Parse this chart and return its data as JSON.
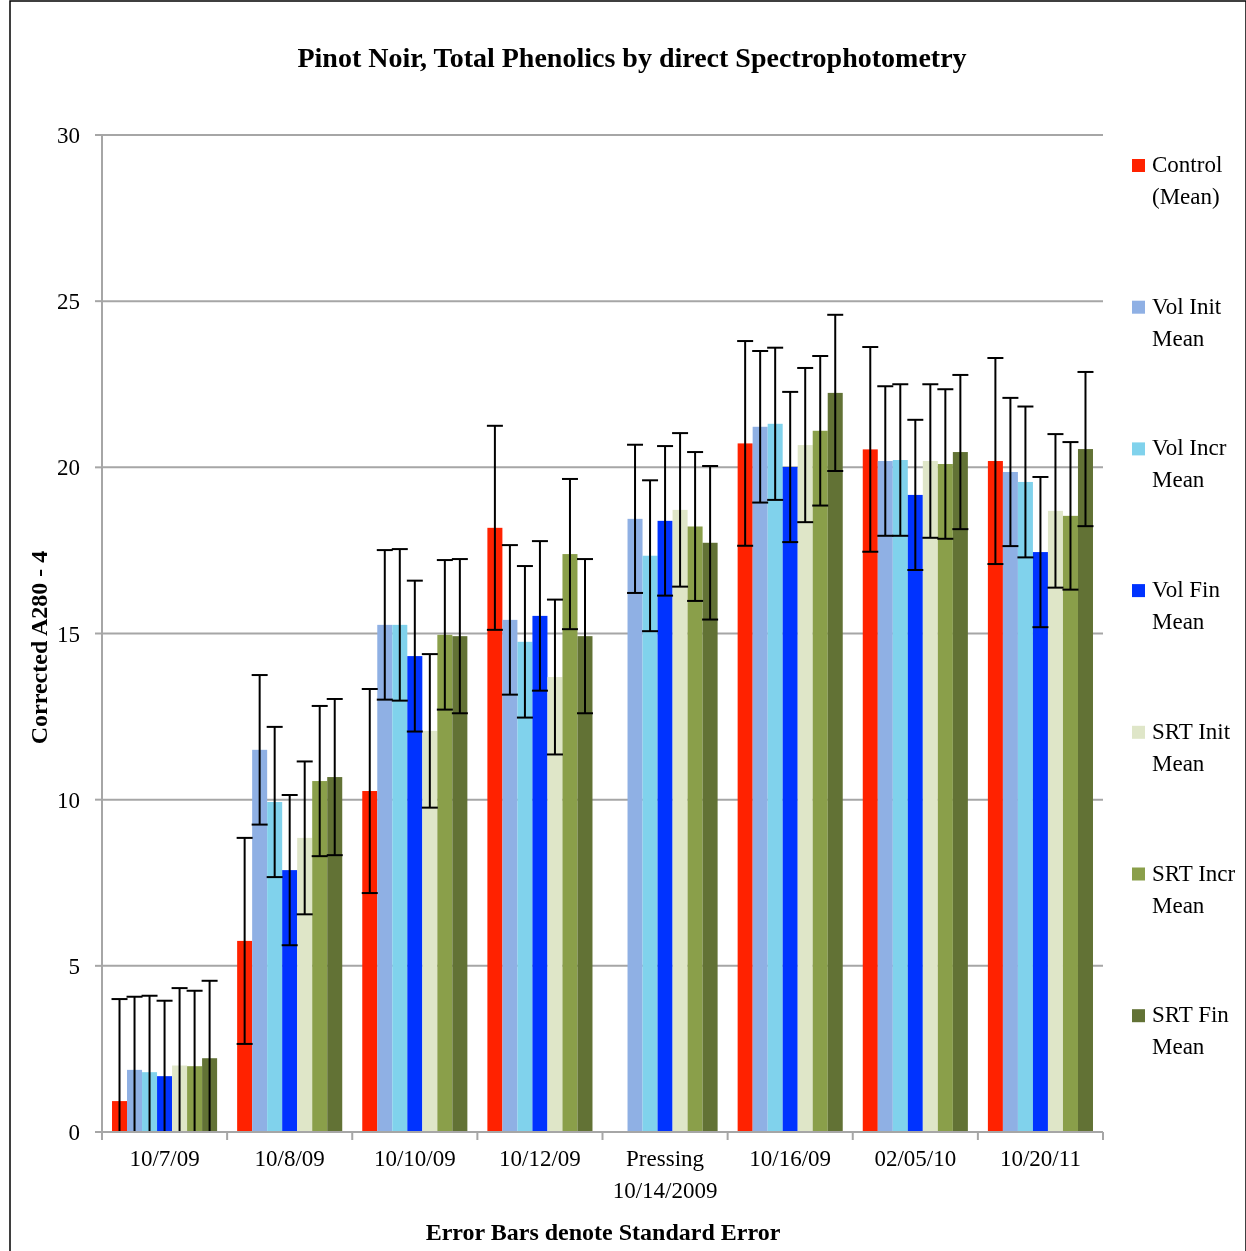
{
  "chart_data": {
    "type": "bar",
    "title": "Pinot Noir, Total Phenolics by direct Spectrophotometry",
    "xlabel": "Error Bars denote Standard Error",
    "ylabel": "Corrected A280 - 4",
    "categories": [
      "10/7/09",
      "10/8/09",
      "10/10/09",
      "10/12/09",
      "Pressing 10/14/2009",
      "10/16/09",
      "02/05/10",
      "10/20/11"
    ],
    "series": [
      {
        "name": "Control (Mean)",
        "color": "#ff2200",
        "values": [
          0.93,
          5.75,
          10.26,
          18.18,
          null,
          20.72,
          20.54,
          20.19
        ],
        "errors": [
          [
            0,
            4.0
          ],
          3.1,
          3.07,
          3.07,
          null,
          3.08,
          3.08,
          3.1
        ]
      },
      {
        "name": "Vol Init Mean",
        "color": "#8fb0e4",
        "values": [
          1.87,
          11.5,
          15.26,
          15.41,
          18.45,
          21.22,
          20.19,
          19.86
        ],
        "errors": [
          [
            0,
            4.07
          ],
          2.25,
          2.25,
          2.25,
          2.23,
          2.28,
          2.25,
          2.23
        ]
      },
      {
        "name": "Vol Incr Mean",
        "color": "#80d2ec",
        "values": [
          1.8,
          9.93,
          15.26,
          14.75,
          17.34,
          21.31,
          20.22,
          19.56
        ],
        "errors": [
          [
            0,
            4.1
          ],
          2.26,
          2.28,
          2.28,
          2.27,
          2.29,
          2.28,
          2.27
        ]
      },
      {
        "name": "Vol Fin Mean",
        "color": "#0033ff",
        "values": [
          1.68,
          7.88,
          14.32,
          15.53,
          18.39,
          20.01,
          19.17,
          17.45
        ],
        "errors": [
          [
            0,
            3.95
          ],
          2.26,
          2.27,
          2.25,
          2.25,
          2.26,
          2.26,
          2.26
        ]
      },
      {
        "name": "SRT Init Mean",
        "color": "#dfe6c8",
        "values": [
          2.0,
          8.85,
          12.07,
          13.69,
          18.72,
          20.67,
          20.19,
          18.69
        ],
        "errors": [
          [
            0,
            4.33
          ],
          2.3,
          2.31,
          2.33,
          2.31,
          2.32,
          2.31,
          2.31
        ]
      },
      {
        "name": "SRT Incr Mean",
        "color": "#8a9f4a",
        "values": [
          1.98,
          10.56,
          14.96,
          17.39,
          18.22,
          21.1,
          20.1,
          18.54
        ],
        "errors": [
          [
            0,
            4.25
          ],
          2.26,
          2.25,
          2.26,
          2.24,
          2.25,
          2.25,
          2.22
        ]
      },
      {
        "name": "SRT Fin Mean",
        "color": "#627235",
        "values": [
          2.22,
          10.68,
          14.92,
          14.92,
          17.73,
          22.24,
          20.46,
          20.55
        ],
        "errors": [
          [
            0,
            4.55
          ],
          2.35,
          2.32,
          2.32,
          2.31,
          2.35,
          2.32,
          2.32
        ]
      }
    ],
    "ylim": [
      0,
      30
    ],
    "yticks": [
      0,
      5,
      10,
      15,
      20,
      25,
      30
    ],
    "grid": "y",
    "legend": "right"
  }
}
